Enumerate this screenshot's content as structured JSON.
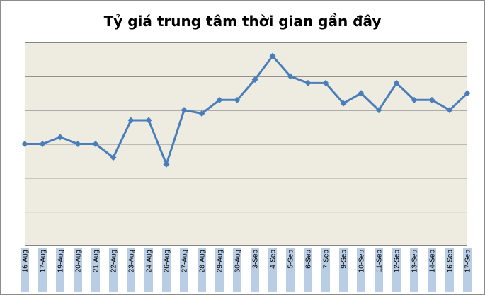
{
  "chart_data": {
    "type": "line",
    "title": "Tỷ giá trung tâm thời gian gần đây",
    "xlabel": "",
    "ylabel": "",
    "categories": [
      "16-Aug",
      "17-Aug",
      "19-Aug",
      "20-Aug",
      "21-Aug",
      "22-Aug",
      "23-Aug",
      "24-Aug",
      "26-Aug",
      "27-Aug",
      "28-Aug",
      "29-Aug",
      "30-Aug",
      "3-Sep",
      "4-Sep",
      "5-Sep",
      "6-Sep",
      "7-Sep",
      "9-Sep",
      "10-Sep",
      "11-Sep",
      "12-Sep",
      "13-Sep",
      "14-Sep",
      "16-Sep",
      "17-Sep"
    ],
    "values": [
      3.0,
      3.0,
      3.2,
      3.0,
      3.0,
      2.6,
      3.7,
      3.7,
      2.4,
      4.0,
      3.9,
      4.3,
      4.3,
      4.9,
      5.6,
      5.0,
      4.8,
      4.8,
      4.2,
      4.5,
      4.0,
      4.8,
      4.3,
      4.3,
      4.0,
      4.5
    ],
    "ylim": [
      0,
      6
    ],
    "grid": true,
    "legend": "none",
    "colors": {
      "line": "#4a7ebb",
      "plot_background": "#eeece1",
      "gridline": "#868686",
      "tick_label_background": "#b9cde5"
    }
  }
}
